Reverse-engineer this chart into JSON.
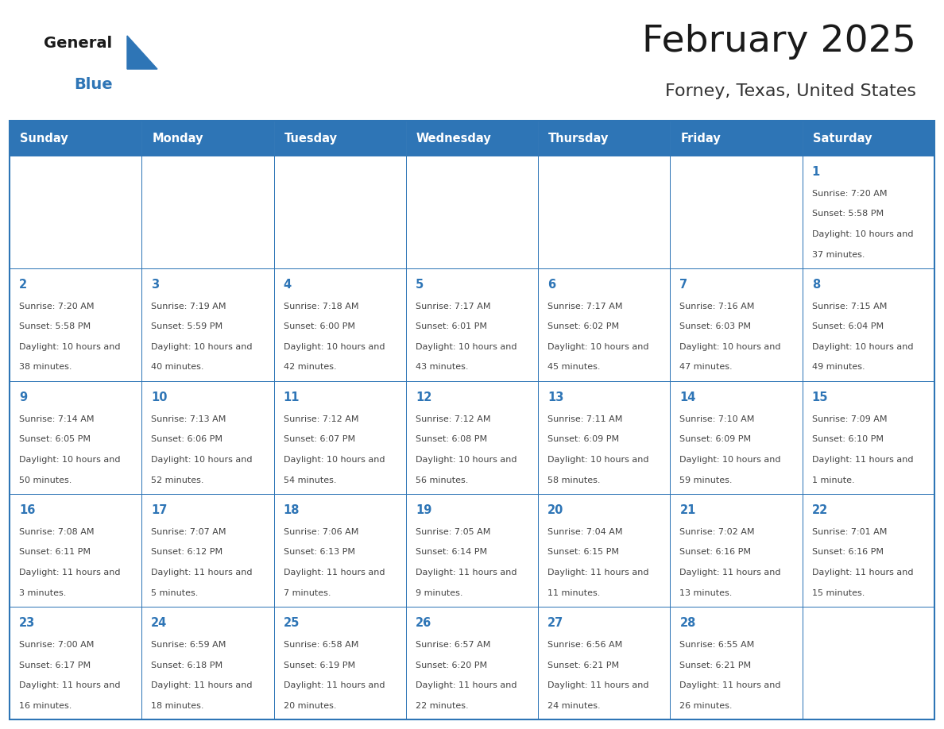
{
  "title": "February 2025",
  "subtitle": "Forney, Texas, United States",
  "header_bg": "#2E75B6",
  "header_text_color": "#FFFFFF",
  "cell_bg": "#FFFFFF",
  "border_color": "#2E75B6",
  "grid_line_color": "#AAAAAA",
  "day_headers": [
    "Sunday",
    "Monday",
    "Tuesday",
    "Wednesday",
    "Thursday",
    "Friday",
    "Saturday"
  ],
  "title_color": "#1a1a1a",
  "subtitle_color": "#333333",
  "cell_text_color": "#444444",
  "day_num_color": "#2E75B6",
  "logo_general_color": "#1a1a1a",
  "logo_blue_color": "#2E75B6",
  "weeks": [
    [
      {
        "day": null,
        "sunrise": null,
        "sunset": null,
        "daylight": null
      },
      {
        "day": null,
        "sunrise": null,
        "sunset": null,
        "daylight": null
      },
      {
        "day": null,
        "sunrise": null,
        "sunset": null,
        "daylight": null
      },
      {
        "day": null,
        "sunrise": null,
        "sunset": null,
        "daylight": null
      },
      {
        "day": null,
        "sunrise": null,
        "sunset": null,
        "daylight": null
      },
      {
        "day": null,
        "sunrise": null,
        "sunset": null,
        "daylight": null
      },
      {
        "day": 1,
        "sunrise": "7:20 AM",
        "sunset": "5:58 PM",
        "daylight": "10 hours and 37 minutes."
      }
    ],
    [
      {
        "day": 2,
        "sunrise": "7:20 AM",
        "sunset": "5:58 PM",
        "daylight": "10 hours and 38 minutes."
      },
      {
        "day": 3,
        "sunrise": "7:19 AM",
        "sunset": "5:59 PM",
        "daylight": "10 hours and 40 minutes."
      },
      {
        "day": 4,
        "sunrise": "7:18 AM",
        "sunset": "6:00 PM",
        "daylight": "10 hours and 42 minutes."
      },
      {
        "day": 5,
        "sunrise": "7:17 AM",
        "sunset": "6:01 PM",
        "daylight": "10 hours and 43 minutes."
      },
      {
        "day": 6,
        "sunrise": "7:17 AM",
        "sunset": "6:02 PM",
        "daylight": "10 hours and 45 minutes."
      },
      {
        "day": 7,
        "sunrise": "7:16 AM",
        "sunset": "6:03 PM",
        "daylight": "10 hours and 47 minutes."
      },
      {
        "day": 8,
        "sunrise": "7:15 AM",
        "sunset": "6:04 PM",
        "daylight": "10 hours and 49 minutes."
      }
    ],
    [
      {
        "day": 9,
        "sunrise": "7:14 AM",
        "sunset": "6:05 PM",
        "daylight": "10 hours and 50 minutes."
      },
      {
        "day": 10,
        "sunrise": "7:13 AM",
        "sunset": "6:06 PM",
        "daylight": "10 hours and 52 minutes."
      },
      {
        "day": 11,
        "sunrise": "7:12 AM",
        "sunset": "6:07 PM",
        "daylight": "10 hours and 54 minutes."
      },
      {
        "day": 12,
        "sunrise": "7:12 AM",
        "sunset": "6:08 PM",
        "daylight": "10 hours and 56 minutes."
      },
      {
        "day": 13,
        "sunrise": "7:11 AM",
        "sunset": "6:09 PM",
        "daylight": "10 hours and 58 minutes."
      },
      {
        "day": 14,
        "sunrise": "7:10 AM",
        "sunset": "6:09 PM",
        "daylight": "10 hours and 59 minutes."
      },
      {
        "day": 15,
        "sunrise": "7:09 AM",
        "sunset": "6:10 PM",
        "daylight": "11 hours and 1 minute."
      }
    ],
    [
      {
        "day": 16,
        "sunrise": "7:08 AM",
        "sunset": "6:11 PM",
        "daylight": "11 hours and 3 minutes."
      },
      {
        "day": 17,
        "sunrise": "7:07 AM",
        "sunset": "6:12 PM",
        "daylight": "11 hours and 5 minutes."
      },
      {
        "day": 18,
        "sunrise": "7:06 AM",
        "sunset": "6:13 PM",
        "daylight": "11 hours and 7 minutes."
      },
      {
        "day": 19,
        "sunrise": "7:05 AM",
        "sunset": "6:14 PM",
        "daylight": "11 hours and 9 minutes."
      },
      {
        "day": 20,
        "sunrise": "7:04 AM",
        "sunset": "6:15 PM",
        "daylight": "11 hours and 11 minutes."
      },
      {
        "day": 21,
        "sunrise": "7:02 AM",
        "sunset": "6:16 PM",
        "daylight": "11 hours and 13 minutes."
      },
      {
        "day": 22,
        "sunrise": "7:01 AM",
        "sunset": "6:16 PM",
        "daylight": "11 hours and 15 minutes."
      }
    ],
    [
      {
        "day": 23,
        "sunrise": "7:00 AM",
        "sunset": "6:17 PM",
        "daylight": "11 hours and 16 minutes."
      },
      {
        "day": 24,
        "sunrise": "6:59 AM",
        "sunset": "6:18 PM",
        "daylight": "11 hours and 18 minutes."
      },
      {
        "day": 25,
        "sunrise": "6:58 AM",
        "sunset": "6:19 PM",
        "daylight": "11 hours and 20 minutes."
      },
      {
        "day": 26,
        "sunrise": "6:57 AM",
        "sunset": "6:20 PM",
        "daylight": "11 hours and 22 minutes."
      },
      {
        "day": 27,
        "sunrise": "6:56 AM",
        "sunset": "6:21 PM",
        "daylight": "11 hours and 24 minutes."
      },
      {
        "day": 28,
        "sunrise": "6:55 AM",
        "sunset": "6:21 PM",
        "daylight": "11 hours and 26 minutes."
      },
      {
        "day": null,
        "sunrise": null,
        "sunset": null,
        "daylight": null
      }
    ]
  ]
}
